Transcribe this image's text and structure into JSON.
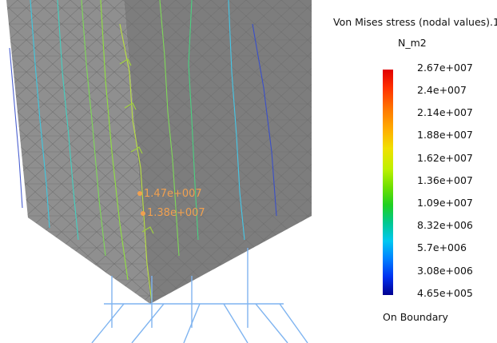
{
  "legend": {
    "title": "Von Mises stress (nodal values).1",
    "unit": "N_m2",
    "ticks": [
      "2.67e+007",
      "2.4e+007",
      "2.14e+007",
      "1.88e+007",
      "1.62e+007",
      "1.36e+007",
      "1.09e+007",
      "8.32e+006",
      "5.7e+006",
      "3.08e+006",
      "4.65e+005"
    ],
    "footer": "On Boundary"
  },
  "annotations": [
    "1.47e+007",
    "1.38e+007"
  ],
  "colors": {
    "mesh_fill": "#8a8a8a",
    "annotation": "#f0a050",
    "constraint": "#7fb4f0"
  }
}
